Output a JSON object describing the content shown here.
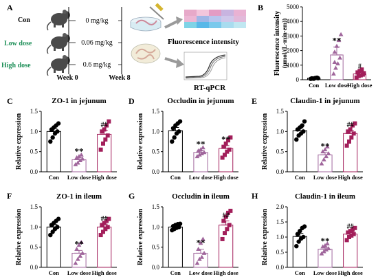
{
  "schematic": {
    "panel_letter": "A",
    "groups": [
      {
        "label": "Con",
        "dose": "0 mg/kg",
        "color": "#1a1a1a"
      },
      {
        "label": "Low dose",
        "dose": "0.06 mg/kg",
        "color": "#1e8f58"
      },
      {
        "label": "High dose",
        "dose": "0.6 mg/kg",
        "color": "#1e8f58"
      }
    ],
    "week_start": "Week 0",
    "week_end": "Week 8",
    "fluorescence_label": "Fluorescence  intensity",
    "qpcr_label": "RT-qPCR",
    "heatmap_colors": [
      "#e7a9c9",
      "#f3c6dc",
      "#e39cc4",
      "#c8b4e0",
      "#e9b2d3",
      "#ecb6d4",
      "#9fb6e6",
      "#b7c5ee",
      "#cfc7ea",
      "#e2b9da",
      "#7fd3e6",
      "#58b8e8",
      "#7ac9ec",
      "#a9dcef",
      "#c0e7f1"
    ]
  },
  "colors": {
    "con": "#000000",
    "low": "#a0669c",
    "high": "#a21e5a"
  },
  "chart_data": [
    {
      "panel": "B",
      "type": "bar",
      "title": "",
      "xlabel": "",
      "ylabel": "Fluorescence intensity (μmol/(L·min·em))",
      "categories": [
        "Con",
        "Low dose",
        "High dose"
      ],
      "ylim": [
        0,
        5000
      ],
      "yticks": [
        0,
        1000,
        2000,
        3000,
        4000,
        5000
      ],
      "values": [
        100,
        1700,
        400
      ],
      "errors": [
        50,
        550,
        150
      ],
      "points": [
        [
          60,
          80,
          110,
          140,
          90,
          70,
          120,
          100
        ],
        [
          400,
          800,
          1100,
          1500,
          1900,
          2300,
          2700,
          3100,
          1200
        ],
        [
          150,
          250,
          300,
          350,
          500,
          600,
          700,
          450
        ]
      ],
      "annotations": [
        "",
        "**",
        "#"
      ]
    },
    {
      "panel": "C",
      "type": "bar",
      "title": "ZO-1 in jejunum",
      "xlabel": "",
      "ylabel": "Relative expression",
      "categories": [
        "Con",
        "Low dose",
        "High dose"
      ],
      "ylim": [
        0,
        1.5
      ],
      "yticks": [
        0.0,
        0.5,
        1.0,
        1.5
      ],
      "values": [
        1.0,
        0.3,
        0.93
      ],
      "errors": [
        0.08,
        0.05,
        0.1
      ],
      "points": [
        [
          0.75,
          0.85,
          0.95,
          1.0,
          1.05,
          1.1,
          1.15,
          1.2
        ],
        [
          0.18,
          0.22,
          0.28,
          0.32,
          0.35,
          0.38,
          0.42
        ],
        [
          0.55,
          0.7,
          0.8,
          0.9,
          1.0,
          1.05,
          1.15,
          1.25
        ]
      ],
      "annotations": [
        "",
        "**",
        "##"
      ]
    },
    {
      "panel": "D",
      "type": "bar",
      "title": "Occludin in jejunum",
      "xlabel": "",
      "ylabel": "Relative expression",
      "categories": [
        "Con",
        "Low dose",
        "High dose"
      ],
      "ylim": [
        0,
        1.5
      ],
      "yticks": [
        0.0,
        0.5,
        1.0,
        1.5
      ],
      "values": [
        1.02,
        0.48,
        0.58
      ],
      "errors": [
        0.08,
        0.05,
        0.07
      ],
      "points": [
        [
          0.75,
          0.85,
          0.95,
          1.0,
          1.08,
          1.15,
          1.2,
          1.25
        ],
        [
          0.38,
          0.42,
          0.45,
          0.48,
          0.52,
          0.55,
          0.6
        ],
        [
          0.35,
          0.42,
          0.5,
          0.55,
          0.62,
          0.7,
          0.78,
          0.85
        ]
      ],
      "annotations": [
        "",
        "**",
        "**"
      ]
    },
    {
      "panel": "E",
      "type": "bar",
      "title": "Claudin-1 in jejunum",
      "xlabel": "",
      "ylabel": "Relative expression",
      "categories": [
        "Con",
        "Low dose",
        "High dose"
      ],
      "ylim": [
        0,
        1.5
      ],
      "yticks": [
        0.0,
        0.5,
        1.0,
        1.5
      ],
      "values": [
        1.02,
        0.42,
        0.95
      ],
      "errors": [
        0.07,
        0.06,
        0.08
      ],
      "points": [
        [
          0.8,
          0.9,
          0.95,
          1.0,
          1.05,
          1.1,
          1.15,
          1.25
        ],
        [
          0.2,
          0.3,
          0.38,
          0.45,
          0.5,
          0.55,
          0.62
        ],
        [
          0.65,
          0.75,
          0.85,
          0.95,
          1.0,
          1.05,
          1.15,
          1.2
        ]
      ],
      "annotations": [
        "",
        "**",
        "##"
      ]
    },
    {
      "panel": "F",
      "type": "bar",
      "title": "ZO-1 in ileum",
      "xlabel": "",
      "ylabel": "Relative expression",
      "categories": [
        "Con",
        "Low dose",
        "High dose"
      ],
      "ylim": [
        0,
        1.5
      ],
      "yticks": [
        0.0,
        0.5,
        1.0,
        1.5
      ],
      "values": [
        1.0,
        0.35,
        1.0
      ],
      "errors": [
        0.06,
        0.07,
        0.07
      ],
      "points": [
        [
          0.8,
          0.88,
          0.95,
          1.0,
          1.05,
          1.1,
          1.15,
          1.2
        ],
        [
          0.1,
          0.2,
          0.28,
          0.35,
          0.45,
          0.55,
          0.62
        ],
        [
          0.8,
          0.88,
          0.95,
          1.0,
          1.05,
          1.1,
          1.15,
          1.2
        ]
      ],
      "annotations": [
        "",
        "**",
        "##"
      ]
    },
    {
      "panel": "G",
      "type": "bar",
      "title": "Occludin in ileum",
      "xlabel": "",
      "ylabel": "Relative expression",
      "categories": [
        "Con",
        "Low dose",
        "High dose"
      ],
      "ylim": [
        0,
        1.5
      ],
      "yticks": [
        0.0,
        0.5,
        1.0,
        1.5
      ],
      "values": [
        1.0,
        0.35,
        1.05
      ],
      "errors": [
        0.03,
        0.1,
        0.1
      ],
      "points": [
        [
          0.92,
          0.95,
          0.98,
          1.0,
          1.02,
          1.05,
          1.07,
          1.08
        ],
        [
          0.1,
          0.2,
          0.25,
          0.35,
          0.45,
          0.6,
          0.7
        ],
        [
          0.7,
          0.85,
          0.95,
          1.05,
          1.15,
          1.25,
          1.35,
          1.4
        ]
      ],
      "annotations": [
        "",
        "**",
        "##"
      ]
    },
    {
      "panel": "H",
      "type": "bar",
      "title": "Claudin-1 in ileum",
      "xlabel": "",
      "ylabel": "Relative expression",
      "categories": [
        "Con",
        "Low dose",
        "High dose"
      ],
      "ylim": [
        0,
        2.0
      ],
      "yticks": [
        0.0,
        0.5,
        1.0,
        1.5,
        2.0
      ],
      "values": [
        1.02,
        0.6,
        1.1
      ],
      "errors": [
        0.1,
        0.06,
        0.07
      ],
      "points": [
        [
          0.7,
          0.85,
          0.95,
          1.0,
          1.1,
          1.2,
          1.3,
          1.35
        ],
        [
          0.45,
          0.52,
          0.58,
          0.62,
          0.68,
          0.72,
          0.78
        ],
        [
          0.9,
          1.0,
          1.05,
          1.1,
          1.15,
          1.2,
          1.25,
          1.3
        ]
      ],
      "annotations": [
        "",
        "**",
        "##"
      ]
    }
  ]
}
